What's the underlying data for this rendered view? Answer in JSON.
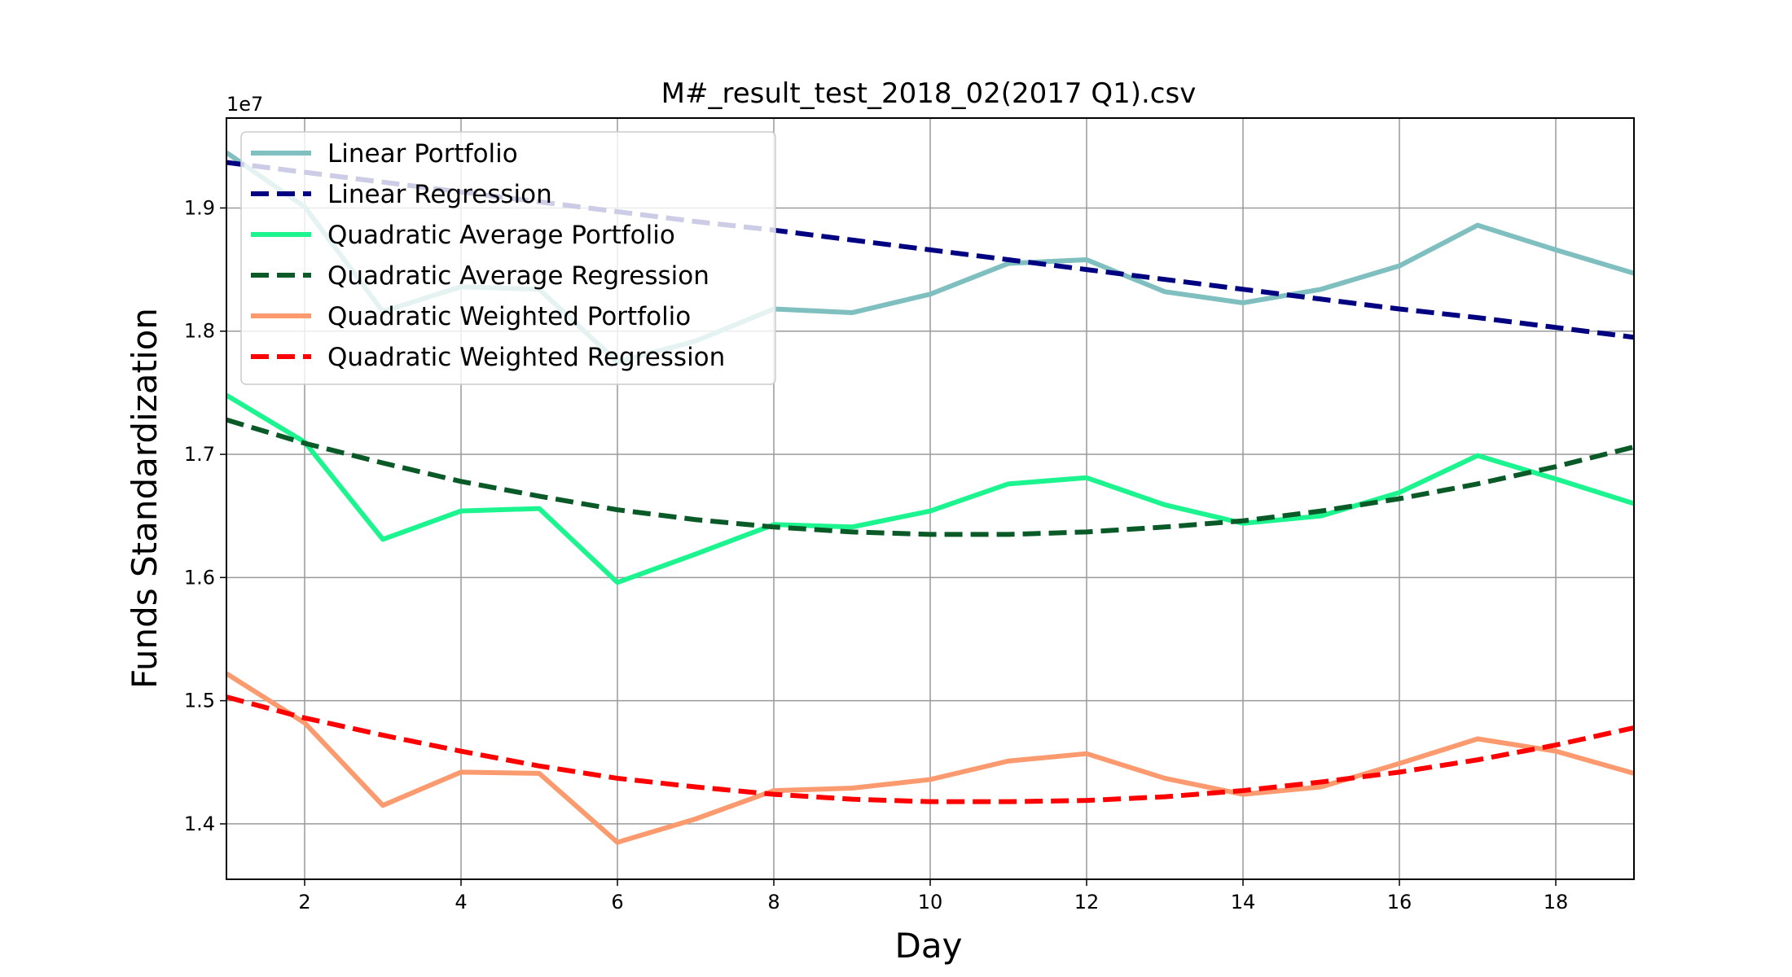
{
  "chart_data": {
    "type": "line",
    "title": "M#_result_test_2018_02(2017 Q1).csv",
    "xlabel": "Day",
    "ylabel": "Funds Standardization",
    "y_offset_label": "1e7",
    "xlim": [
      1,
      19
    ],
    "ylim": [
      1.355,
      1.973
    ],
    "x_ticks": [
      2,
      4,
      6,
      8,
      10,
      12,
      14,
      16,
      18
    ],
    "y_ticks": [
      1.4,
      1.5,
      1.6,
      1.7,
      1.8,
      1.9
    ],
    "grid": true,
    "legend_position": "upper-left",
    "x": [
      1,
      2,
      3,
      4,
      5,
      6,
      7,
      8,
      9,
      10,
      11,
      12,
      13,
      14,
      15,
      16,
      17,
      18,
      19
    ],
    "series": [
      {
        "name": "Linear Portfolio",
        "color": "#7fbfbf",
        "style": "solid",
        "values": [
          1.945,
          1.901,
          1.816,
          1.836,
          1.834,
          1.775,
          1.792,
          1.818,
          1.815,
          1.83,
          1.855,
          1.858,
          1.832,
          1.823,
          1.834,
          1.853,
          1.886,
          1.866,
          1.847
        ]
      },
      {
        "name": "Linear Regression",
        "color": "#000080",
        "style": "dashed",
        "values": [
          1.937,
          1.929,
          1.921,
          1.913,
          1.905,
          1.897,
          1.889,
          1.882,
          1.874,
          1.866,
          1.858,
          1.85,
          1.842,
          1.834,
          1.826,
          1.818,
          1.811,
          1.803,
          1.795
        ]
      },
      {
        "name": "Quadratic Average Portfolio",
        "color": "#1cf58f",
        "style": "solid",
        "values": [
          1.748,
          1.71,
          1.631,
          1.654,
          1.656,
          1.596,
          1.619,
          1.643,
          1.641,
          1.654,
          1.676,
          1.681,
          1.659,
          1.644,
          1.65,
          1.669,
          1.699,
          1.68,
          1.66
        ]
      },
      {
        "name": "Quadratic Average Regression",
        "color": "#0a5a28",
        "style": "dashed",
        "values": [
          1.728,
          1.709,
          1.693,
          1.678,
          1.666,
          1.655,
          1.647,
          1.641,
          1.637,
          1.635,
          1.635,
          1.637,
          1.641,
          1.646,
          1.654,
          1.664,
          1.676,
          1.69,
          1.706
        ]
      },
      {
        "name": "Quadratic Weighted Portfolio",
        "color": "#fa9a6e",
        "style": "solid",
        "values": [
          1.522,
          1.482,
          1.415,
          1.442,
          1.441,
          1.385,
          1.404,
          1.427,
          1.429,
          1.436,
          1.451,
          1.457,
          1.437,
          1.424,
          1.43,
          1.449,
          1.469,
          1.459,
          1.441
        ]
      },
      {
        "name": "Quadratic Weighted Regression",
        "color": "#ff0000",
        "style": "dashed",
        "values": [
          1.503,
          1.486,
          1.472,
          1.459,
          1.447,
          1.437,
          1.43,
          1.424,
          1.42,
          1.418,
          1.418,
          1.419,
          1.422,
          1.427,
          1.434,
          1.442,
          1.452,
          1.464,
          1.478
        ]
      }
    ]
  }
}
